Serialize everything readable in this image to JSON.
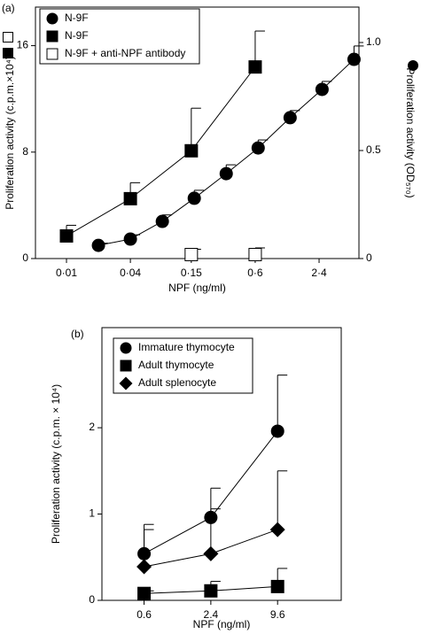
{
  "chart_data": [
    {
      "type": "line",
      "panel_label": "(a)",
      "xlabel": "NPF (ng/ml)",
      "ylabel": "Proliferation activity (c.p.m.×10⁴)",
      "y2label": "Proliferation activity (OD₅₇₀)",
      "xscale": "log",
      "xlim": [
        0.0051,
        5.7
      ],
      "xticks": [
        {
          "value": 0.01,
          "label": "0·01"
        },
        {
          "value": 0.04,
          "label": "0·04"
        },
        {
          "value": 0.15,
          "label": "0·15"
        },
        {
          "value": 0.6,
          "label": "0·6"
        },
        {
          "value": 2.4,
          "label": "2·4"
        }
      ],
      "ylim": [
        0,
        18.9
      ],
      "yticks": [
        0,
        8,
        16
      ],
      "y2lim": [
        0,
        1.164
      ],
      "y2ticks": [
        0,
        0.5,
        {
          "value": 1,
          "label": "1.0"
        }
      ],
      "legend": "upper left",
      "series": [
        {
          "name": "N-9F",
          "marker": "circle",
          "color": "#000000",
          "axis": "y2",
          "connect": true,
          "x": [
            0.02,
            0.04,
            0.08,
            0.16,
            0.32,
            0.64,
            1.28,
            2.56,
            5.12
          ],
          "values": [
            0.061,
            0.09,
            0.172,
            0.279,
            0.393,
            0.512,
            0.652,
            0.783,
            0.922
          ],
          "errors": [
            0.01,
            0.02,
            0.03,
            0.037,
            0.041,
            0.037,
            0.033,
            0.037,
            0.062
          ]
        },
        {
          "name": "N-9F",
          "marker": "square",
          "color": "#000000",
          "axis": "y",
          "connect": true,
          "x": [
            0.01,
            0.04,
            0.15,
            0.6
          ],
          "values": [
            1.7,
            4.5,
            8.1,
            14.4
          ],
          "errors": [
            0.8,
            1.2,
            3.2,
            2.7
          ]
        },
        {
          "name": "N-9F + anti-NPF antibody",
          "marker": "open-square",
          "color": "#000000",
          "axis": "y",
          "connect": false,
          "x": [
            0.15,
            0.6
          ],
          "values": [
            0.3,
            0.3
          ],
          "errors": [
            0.4,
            0.5
          ]
        }
      ]
    },
    {
      "type": "line",
      "panel_label": "(b)",
      "xlabel": "NPF (ng/ml)",
      "ylabel": "Proliferation activity (c.p.m. × 10⁴)",
      "xscale": "log",
      "xlim": [
        0.25,
        36
      ],
      "xticks": [
        0.6,
        2.4,
        9.6
      ],
      "ylim": [
        0,
        3.16
      ],
      "yticks": [
        0,
        1,
        2
      ],
      "legend": "upper left",
      "series": [
        {
          "name": "Immature thymocyte",
          "marker": "circle",
          "color": "#000000",
          "axis": "y",
          "connect": true,
          "x": [
            0.6,
            2.4,
            9.6
          ],
          "values": [
            0.54,
            0.96,
            1.96
          ],
          "errors": [
            0.34,
            0.34,
            0.65
          ]
        },
        {
          "name": "Adult thymocyte",
          "marker": "square",
          "color": "#000000",
          "axis": "y",
          "connect": true,
          "x": [
            0.6,
            2.4,
            9.6
          ],
          "values": [
            0.08,
            0.11,
            0.16
          ],
          "errors": [
            0.03,
            0.11,
            0.21
          ]
        },
        {
          "name": "Adult splenocyte",
          "marker": "diamond",
          "color": "#000000",
          "axis": "y",
          "connect": true,
          "x": [
            0.6,
            2.4,
            9.6
          ],
          "values": [
            0.39,
            0.54,
            0.82
          ],
          "errors": [
            0.43,
            0.52,
            0.68
          ]
        }
      ]
    }
  ]
}
